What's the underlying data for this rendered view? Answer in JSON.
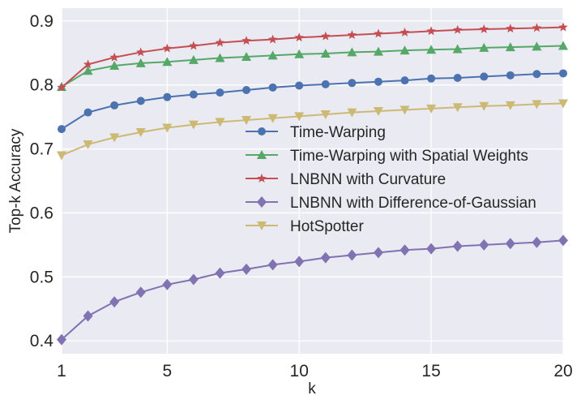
{
  "chart_data": {
    "type": "line",
    "title": "",
    "xlabel": "k",
    "ylabel": "Top-k Accuracy",
    "xlim": [
      1,
      20
    ],
    "ylim": [
      0.38,
      0.92
    ],
    "x": [
      1,
      2,
      3,
      4,
      5,
      6,
      7,
      8,
      9,
      10,
      11,
      12,
      13,
      14,
      15,
      16,
      17,
      18,
      19,
      20
    ],
    "xticks": [
      1,
      5,
      10,
      15,
      20
    ],
    "xtick_labels": [
      "1",
      "5",
      "10",
      "15",
      "20"
    ],
    "yticks": [
      0.4,
      0.5,
      0.6,
      0.7,
      0.8,
      0.9
    ],
    "ytick_labels": [
      "0.4",
      "0.5",
      "0.6",
      "0.7",
      "0.8",
      "0.9"
    ],
    "grid": true,
    "legend_position": "center-right",
    "background": "#eaeaf2",
    "series": [
      {
        "name": "Time-Warping",
        "color": "#4c72b0",
        "marker": "circle",
        "values": [
          0.731,
          0.757,
          0.768,
          0.775,
          0.781,
          0.785,
          0.788,
          0.792,
          0.796,
          0.799,
          0.801,
          0.803,
          0.805,
          0.807,
          0.81,
          0.811,
          0.813,
          0.815,
          0.817,
          0.818
        ]
      },
      {
        "name": "Time-Warping with Spatial Weights",
        "color": "#55a868",
        "marker": "triangle-up",
        "values": [
          0.797,
          0.822,
          0.83,
          0.834,
          0.836,
          0.839,
          0.842,
          0.844,
          0.846,
          0.848,
          0.849,
          0.851,
          0.852,
          0.854,
          0.855,
          0.856,
          0.858,
          0.859,
          0.86,
          0.861
        ]
      },
      {
        "name": "LNBNN with Curvature",
        "color": "#c44e52",
        "marker": "star",
        "values": [
          0.796,
          0.832,
          0.843,
          0.851,
          0.857,
          0.861,
          0.866,
          0.869,
          0.871,
          0.874,
          0.876,
          0.878,
          0.88,
          0.882,
          0.884,
          0.886,
          0.887,
          0.888,
          0.889,
          0.89
        ]
      },
      {
        "name": "LNBNN with Difference-of-Gaussian",
        "color": "#8172b2",
        "marker": "diamond",
        "values": [
          0.402,
          0.439,
          0.461,
          0.476,
          0.488,
          0.496,
          0.506,
          0.512,
          0.519,
          0.524,
          0.53,
          0.534,
          0.538,
          0.542,
          0.544,
          0.548,
          0.55,
          0.552,
          0.554,
          0.557
        ]
      },
      {
        "name": "HotSpotter",
        "color": "#ccb974",
        "marker": "triangle-down",
        "values": [
          0.69,
          0.707,
          0.718,
          0.726,
          0.733,
          0.738,
          0.742,
          0.745,
          0.748,
          0.751,
          0.754,
          0.757,
          0.759,
          0.761,
          0.763,
          0.765,
          0.767,
          0.768,
          0.77,
          0.771
        ]
      }
    ]
  }
}
